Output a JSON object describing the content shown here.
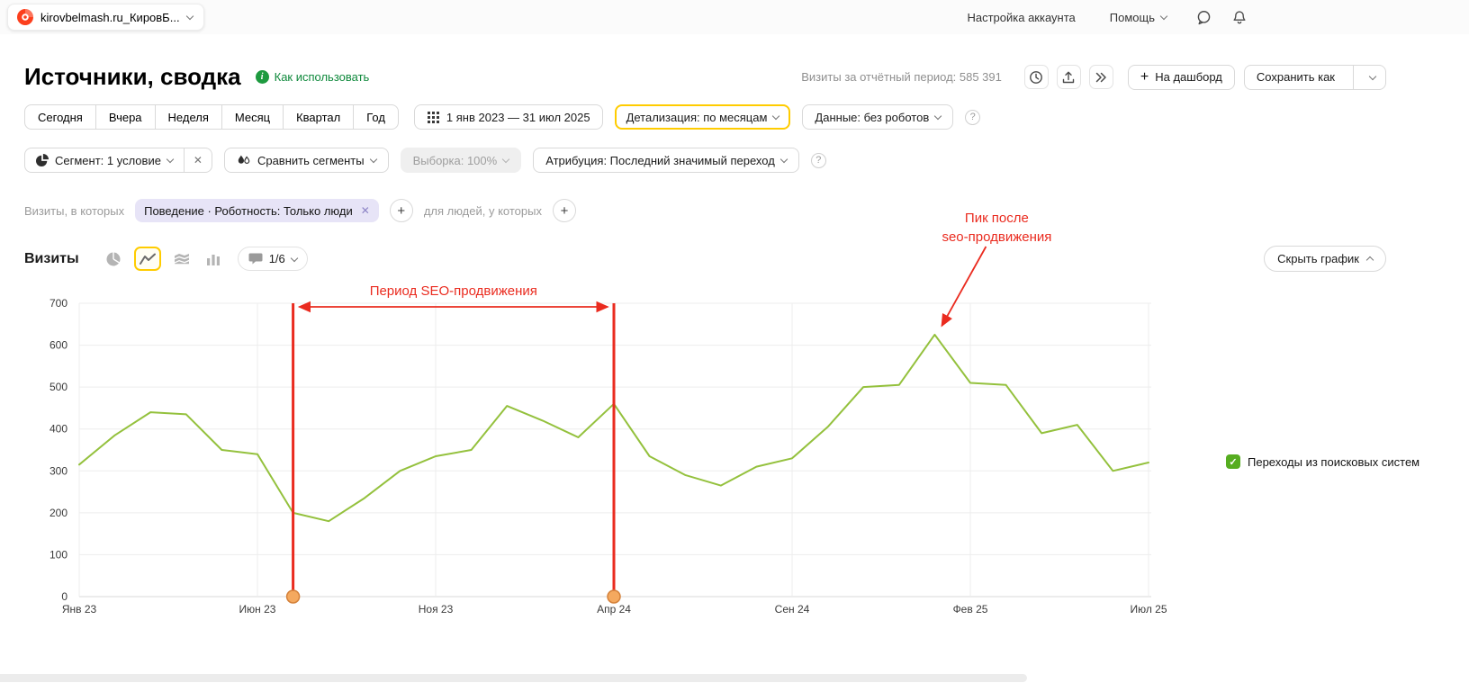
{
  "colors": {
    "accent_yellow": "#ffcc00",
    "line_green": "#94c13d",
    "legend_green": "#56ad20",
    "annotation_red": "#ea2b1f",
    "logo_red": "#fc3f1d",
    "chip_lavender": "#e7e4f7"
  },
  "icons": {
    "plus": "+",
    "close": "✕",
    "check": "✓",
    "question": "?",
    "info": "i"
  },
  "topbar": {
    "counter_name": "kirovbelmash.ru_КировБ...",
    "account_settings": "Настройка аккаунта",
    "help": "Помощь"
  },
  "header": {
    "title": "Источники, сводка",
    "how_to_use": "Как использовать",
    "visits_period": "Визиты за отчётный период: 585 391",
    "to_dashboard": "На дашборд",
    "save_as": "Сохранить как"
  },
  "toolbar": {
    "presets": [
      "Сегодня",
      "Вчера",
      "Неделя",
      "Месяц",
      "Квартал",
      "Год"
    ],
    "date_range": "1 янв 2023 — 31 июл 2025",
    "detalization": "Детализация: по месяцам",
    "data_mode": "Данные: без роботов"
  },
  "segments": {
    "segment": "Сегмент: 1 условие",
    "compare": "Сравнить сегменты",
    "sampling": "Выборка: 100%",
    "attribution": "Атрибуция: Последний значимый переход"
  },
  "filters": {
    "visits_in_which": "Визиты, в которых",
    "condition_chip": "Поведение · Роботность: Только люди",
    "for_people": "для людей, у которых"
  },
  "chart_header": {
    "title": "Визиты",
    "comments_counter": "1/6",
    "hide_chart": "Скрыть график"
  },
  "legend": {
    "label": "Переходы из поисковых систем"
  },
  "chart_data": {
    "type": "line",
    "title": "Визиты",
    "xlabel": "",
    "ylabel": "",
    "ylim": [
      0,
      700
    ],
    "y_ticks": [
      0,
      100,
      200,
      300,
      400,
      500,
      600,
      700
    ],
    "grid": true,
    "legend_position": "right",
    "annotation_color": "#ea2b1f",
    "comment_marker_color": "#f4a95f",
    "x_categories": [
      "Янв 23",
      "Фев 23",
      "Мар 23",
      "Апр 23",
      "Май 23",
      "Июн 23",
      "Июл 23",
      "Авг 23",
      "Сен 23",
      "Окт 23",
      "Ноя 23",
      "Дек 23",
      "Янв 24",
      "Фев 24",
      "Мар 24",
      "Апр 24",
      "Май 24",
      "Июн 24",
      "Июл 24",
      "Авг 24",
      "Сен 24",
      "Окт 24",
      "Ноя 24",
      "Дек 24",
      "Янв 25",
      "Фев 25",
      "Мар 25",
      "Апр 25",
      "Май 25",
      "Июн 25",
      "Июл 25"
    ],
    "x_tick_indices": [
      0,
      5,
      10,
      15,
      20,
      25,
      30
    ],
    "series": [
      {
        "name": "Переходы из поисковых систем",
        "color": "#94c13d",
        "values": [
          315,
          385,
          440,
          435,
          350,
          340,
          200,
          180,
          235,
          300,
          335,
          350,
          455,
          420,
          380,
          460,
          335,
          290,
          265,
          310,
          330,
          405,
          500,
          505,
          625,
          510,
          505,
          390,
          410,
          300,
          320
        ]
      }
    ],
    "annotations": {
      "seo_period": {
        "label": "Период SEO-продвижения",
        "start_index": 6,
        "end_index": 15
      },
      "peak_note": {
        "line1": "Пик после",
        "line2": "seo-продвижения",
        "index": 24,
        "value": 625
      },
      "comment_marker_indices": [
        6,
        15
      ]
    }
  }
}
